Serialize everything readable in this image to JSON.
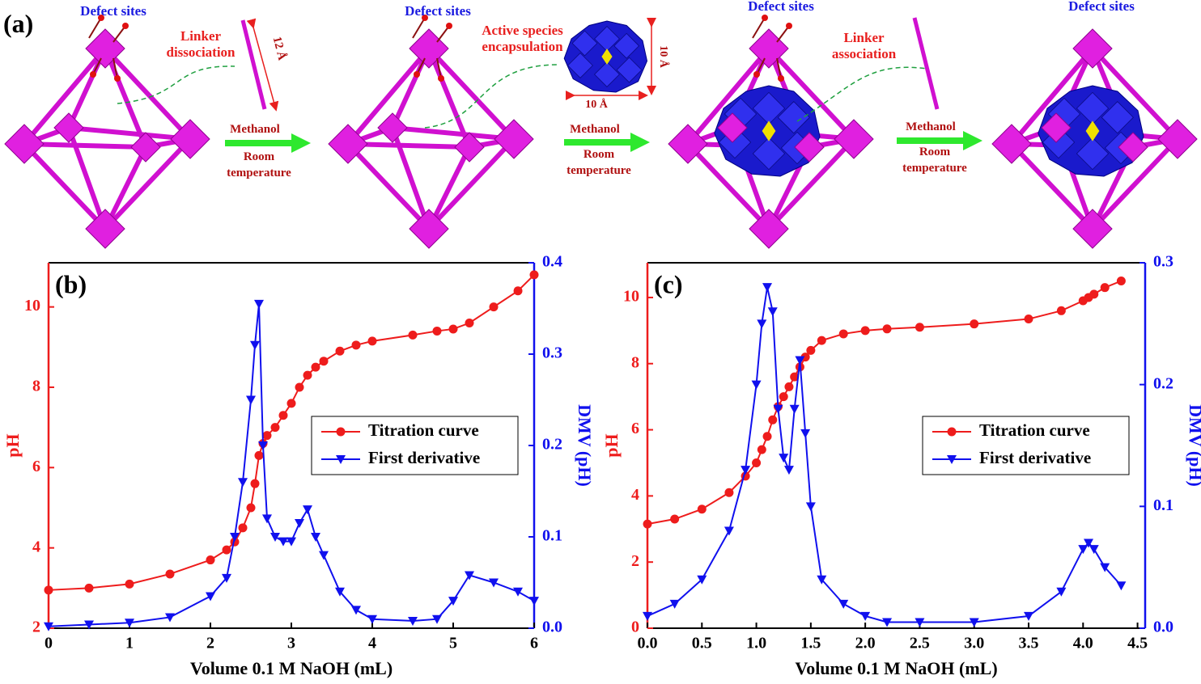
{
  "panel_a": {
    "label": "(a)",
    "defect_labels": [
      "Defect sites",
      "Defect sites",
      "Defect sites",
      "Defect sites"
    ],
    "step_labels": [
      "Linker dissociation",
      "Active species encapsulation",
      "Linker association"
    ],
    "dimensions": [
      "12 Å",
      "10 Å",
      "10 Å"
    ],
    "conditions": [
      {
        "solvent": "Methanol",
        "temperature": "Room temperature"
      },
      {
        "solvent": "Methanol",
        "temperature": "Room temperature"
      },
      {
        "solvent": "Methanol",
        "temperature": "Room temperature"
      }
    ]
  },
  "chart_data": [
    {
      "type": "line",
      "panel_label": "(b)",
      "xlabel": "Volume 0.1 M NaOH (mL)",
      "ylabel": "pH",
      "y2label": "DMV (pH)",
      "xlim": [
        0,
        6
      ],
      "xticks": [
        0,
        1,
        2,
        3,
        4,
        5,
        6
      ],
      "ylim": [
        2,
        11.1
      ],
      "yticks": [
        2,
        4,
        6,
        8,
        10
      ],
      "y2lim": [
        0,
        0.4
      ],
      "y2ticks": [
        {
          "value": 0,
          "label": "0.0"
        },
        0.1,
        0.2,
        0.3,
        0.4
      ],
      "legend": "center right",
      "x": [
        0,
        0.5,
        1,
        1.5,
        2,
        2.2,
        2.3,
        2.4,
        2.5,
        2.55,
        2.6,
        2.65,
        2.7,
        2.8,
        2.9,
        3.0,
        3.1,
        3.2,
        3.3,
        3.4,
        3.6,
        3.8,
        4,
        4.5,
        4.8,
        5,
        5.2,
        5.5,
        5.8,
        6
      ],
      "series": [
        {
          "name": "Titration curve",
          "color": "#ee1c1c",
          "marker": "circle",
          "axis": "y",
          "values": [
            2.95,
            3.0,
            3.1,
            3.35,
            3.7,
            3.95,
            4.15,
            4.5,
            5.0,
            5.6,
            6.3,
            6.6,
            6.8,
            7.0,
            7.3,
            7.6,
            8.0,
            8.3,
            8.5,
            8.65,
            8.9,
            9.05,
            9.15,
            9.3,
            9.4,
            9.45,
            9.6,
            10.0,
            10.4,
            10.8
          ]
        },
        {
          "name": "First derivative",
          "color": "#1010ee",
          "marker": "triangle-down",
          "axis": "y2",
          "values": [
            0.002,
            0.004,
            0.006,
            0.012,
            0.035,
            0.055,
            0.1,
            0.16,
            0.25,
            0.31,
            0.355,
            0.2,
            0.12,
            0.1,
            0.095,
            0.095,
            0.115,
            0.13,
            0.1,
            0.08,
            0.04,
            0.02,
            0.01,
            0.008,
            0.01,
            0.03,
            0.058,
            0.05,
            0.04,
            0.03
          ]
        }
      ]
    },
    {
      "type": "line",
      "panel_label": "(c)",
      "xlabel": "Volume 0.1 M NaOH (mL)",
      "ylabel": "pH",
      "y2label": "DMV (pH)",
      "xlim": [
        0,
        4.57
      ],
      "xticks": [
        {
          "value": 0,
          "label": "0.0"
        },
        0.5,
        {
          "value": 1,
          "label": "1.0"
        },
        1.5,
        {
          "value": 2,
          "label": "2.0"
        },
        2.5,
        {
          "value": 3,
          "label": "3.0"
        },
        3.5,
        {
          "value": 4,
          "label": "4.0"
        },
        4.5
      ],
      "ylim": [
        0,
        11.05
      ],
      "yticks": [
        0,
        2,
        4,
        6,
        8,
        10
      ],
      "y2lim": [
        0,
        0.3
      ],
      "y2ticks": [
        {
          "value": 0,
          "label": "0.0"
        },
        0.1,
        0.2,
        0.3
      ],
      "legend": "center right",
      "x": [
        0,
        0.25,
        0.5,
        0.75,
        0.9,
        1.0,
        1.05,
        1.1,
        1.15,
        1.2,
        1.25,
        1.3,
        1.35,
        1.4,
        1.45,
        1.5,
        1.6,
        1.8,
        2.0,
        2.2,
        2.5,
        3.0,
        3.5,
        3.8,
        4.0,
        4.05,
        4.1,
        4.2,
        4.35
      ],
      "series": [
        {
          "name": "Titration curve",
          "color": "#ee1c1c",
          "marker": "circle",
          "axis": "y",
          "values": [
            3.15,
            3.3,
            3.6,
            4.1,
            4.6,
            5.0,
            5.4,
            5.8,
            6.3,
            6.7,
            7.0,
            7.3,
            7.6,
            7.9,
            8.2,
            8.4,
            8.7,
            8.9,
            9.0,
            9.05,
            9.1,
            9.2,
            9.35,
            9.6,
            9.9,
            10.0,
            10.1,
            10.3,
            10.5
          ]
        },
        {
          "name": "First derivative",
          "color": "#1010ee",
          "marker": "triangle-down",
          "axis": "y2",
          "values": [
            0.01,
            0.02,
            0.04,
            0.08,
            0.13,
            0.2,
            0.25,
            0.28,
            0.26,
            0.18,
            0.14,
            0.13,
            0.18,
            0.22,
            0.16,
            0.1,
            0.04,
            0.02,
            0.01,
            0.005,
            0.005,
            0.005,
            0.01,
            0.03,
            0.065,
            0.07,
            0.065,
            0.05,
            0.035
          ]
        }
      ]
    }
  ]
}
